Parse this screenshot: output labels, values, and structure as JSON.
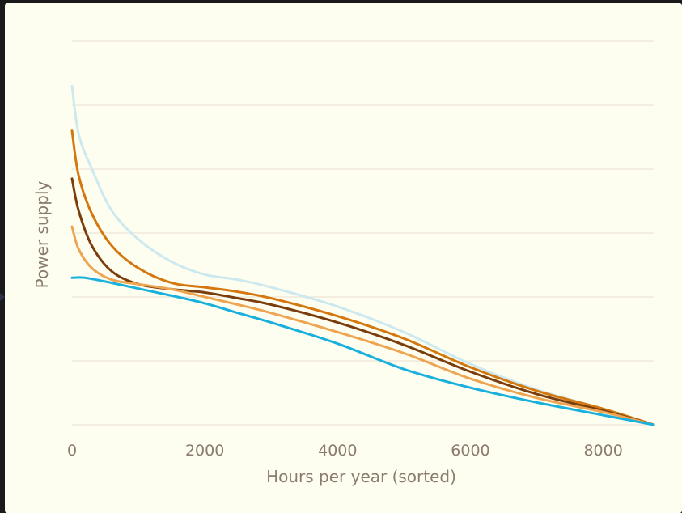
{
  "chart_data": {
    "type": "line",
    "xlabel": "Hours per year (sorted)",
    "ylabel": "Power supply",
    "xlim": [
      0,
      8760
    ],
    "xticks": [
      0,
      2000,
      4000,
      6000,
      8000
    ],
    "ylim": [
      0,
      6
    ],
    "y_gridlines": 7,
    "y_tick_labels_shown": false,
    "grid": true,
    "legend": "none",
    "series": [
      {
        "color": "#cce9ef",
        "points": [
          [
            0,
            5.3
          ],
          [
            100,
            4.55
          ],
          [
            300,
            4.0
          ],
          [
            600,
            3.35
          ],
          [
            1000,
            2.9
          ],
          [
            1500,
            2.55
          ],
          [
            2000,
            2.35
          ],
          [
            2500,
            2.27
          ],
          [
            3000,
            2.15
          ],
          [
            4000,
            1.85
          ],
          [
            5000,
            1.45
          ],
          [
            6000,
            0.95
          ],
          [
            7000,
            0.55
          ],
          [
            8000,
            0.25
          ],
          [
            8760,
            0.0
          ]
        ]
      },
      {
        "color": "#d4770e",
        "points": [
          [
            0,
            4.6
          ],
          [
            100,
            3.9
          ],
          [
            300,
            3.3
          ],
          [
            600,
            2.8
          ],
          [
            1000,
            2.45
          ],
          [
            1500,
            2.22
          ],
          [
            2000,
            2.15
          ],
          [
            2500,
            2.08
          ],
          [
            3000,
            1.98
          ],
          [
            4000,
            1.7
          ],
          [
            5000,
            1.35
          ],
          [
            6000,
            0.9
          ],
          [
            7000,
            0.53
          ],
          [
            8000,
            0.25
          ],
          [
            8760,
            0.0
          ]
        ]
      },
      {
        "color": "#7a3e0c",
        "points": [
          [
            0,
            3.85
          ],
          [
            100,
            3.35
          ],
          [
            300,
            2.8
          ],
          [
            600,
            2.4
          ],
          [
            1000,
            2.2
          ],
          [
            1500,
            2.12
          ],
          [
            2000,
            2.07
          ],
          [
            2500,
            1.98
          ],
          [
            3000,
            1.88
          ],
          [
            4000,
            1.6
          ],
          [
            5000,
            1.25
          ],
          [
            6000,
            0.83
          ],
          [
            7000,
            0.48
          ],
          [
            8000,
            0.22
          ],
          [
            8760,
            0.0
          ]
        ]
      },
      {
        "color": "#eea552",
        "points": [
          [
            0,
            3.1
          ],
          [
            100,
            2.75
          ],
          [
            300,
            2.45
          ],
          [
            600,
            2.27
          ],
          [
            1000,
            2.2
          ],
          [
            1500,
            2.12
          ],
          [
            2000,
            2.0
          ],
          [
            2500,
            1.88
          ],
          [
            3000,
            1.75
          ],
          [
            4000,
            1.45
          ],
          [
            5000,
            1.12
          ],
          [
            6000,
            0.72
          ],
          [
            7000,
            0.42
          ],
          [
            8000,
            0.2
          ],
          [
            8760,
            0.0
          ]
        ]
      },
      {
        "color": "#19b0dd",
        "points": [
          [
            0,
            2.3
          ],
          [
            200,
            2.3
          ],
          [
            600,
            2.22
          ],
          [
            1000,
            2.13
          ],
          [
            1500,
            2.02
          ],
          [
            2000,
            1.9
          ],
          [
            2500,
            1.75
          ],
          [
            3000,
            1.6
          ],
          [
            4000,
            1.27
          ],
          [
            5000,
            0.87
          ],
          [
            6000,
            0.58
          ],
          [
            7000,
            0.35
          ],
          [
            8000,
            0.15
          ],
          [
            8760,
            0.0
          ]
        ]
      }
    ]
  }
}
